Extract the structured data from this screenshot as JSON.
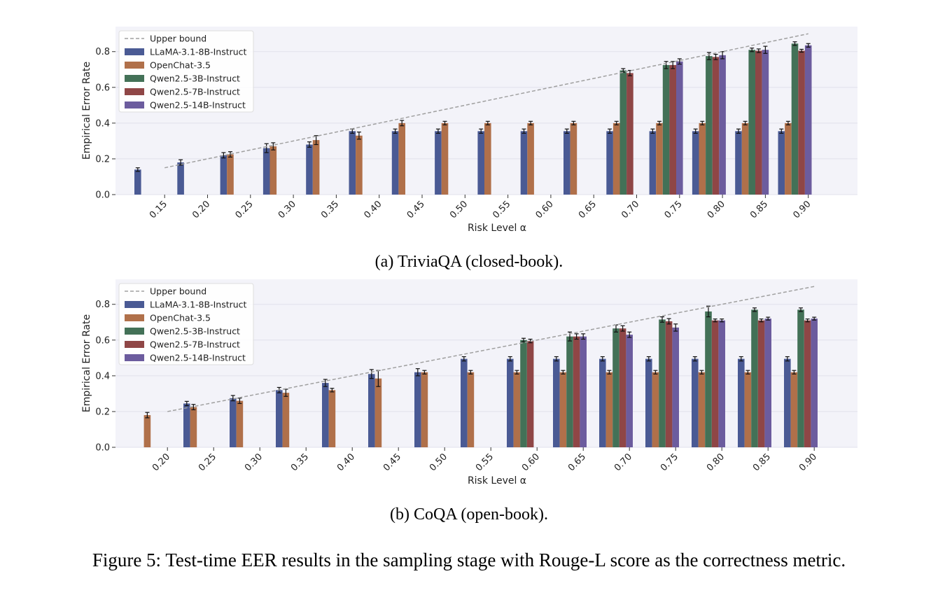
{
  "colors": {
    "LLaMA-3.1-8B-Instruct": "#4a5a94",
    "OpenChat-3.5": "#b0704a",
    "Qwen2.5-3B-Instruct": "#437157",
    "Qwen2.5-7B-Instruct": "#8f4646",
    "Qwen2.5-14B-Instruct": "#6c5c9e",
    "upper_bound": "#a0a0a0",
    "plot_bg": "#f3f3f9"
  },
  "figure_caption": "Figure 5: Test-time EER results in the sampling stage with Rouge-L score as the correctness metric.",
  "chart_data": [
    {
      "type": "bar",
      "caption": "(a) TriviaQA (closed-book).",
      "xlabel": "Risk Level α",
      "ylabel": "Empirical Error Rate",
      "ylim": [
        0,
        0.94
      ],
      "yticks": [
        "0.0",
        "0.2",
        "0.4",
        "0.6",
        "0.8"
      ],
      "categories": [
        "0.15",
        "0.20",
        "0.25",
        "0.30",
        "0.35",
        "0.40",
        "0.45",
        "0.50",
        "0.55",
        "0.60",
        "0.65",
        "0.70",
        "0.75",
        "0.80",
        "0.85",
        "0.90"
      ],
      "legend": [
        "Upper bound",
        "LLaMA-3.1-8B-Instruct",
        "OpenChat-3.5",
        "Qwen2.5-3B-Instruct",
        "Qwen2.5-7B-Instruct",
        "Qwen2.5-14B-Instruct"
      ],
      "legend_position": "top-left",
      "upper_bound": {
        "x": [
          0.15,
          0.9
        ],
        "y": [
          0.15,
          0.9
        ]
      },
      "series": [
        {
          "name": "LLaMA-3.1-8B-Instruct",
          "values": [
            0.14,
            0.18,
            0.22,
            0.26,
            0.28,
            0.355,
            0.355,
            0.355,
            0.355,
            0.355,
            0.355,
            0.355,
            0.355,
            0.355,
            0.355,
            0.355
          ],
          "errors": [
            0.01,
            0.015,
            0.015,
            0.025,
            0.015,
            0.012,
            0.012,
            0.012,
            0.012,
            0.012,
            0.012,
            0.012,
            0.012,
            0.012,
            0.012,
            0.012
          ]
        },
        {
          "name": "OpenChat-3.5",
          "values": [
            null,
            null,
            0.225,
            0.27,
            0.305,
            0.33,
            0.4,
            0.4,
            0.4,
            0.4,
            0.4,
            0.4,
            0.4,
            0.4,
            0.4,
            0.4
          ],
          "errors": [
            null,
            null,
            0.015,
            0.02,
            0.025,
            0.02,
            0.015,
            0.01,
            0.01,
            0.01,
            0.01,
            0.01,
            0.01,
            0.01,
            0.01,
            0.01
          ]
        },
        {
          "name": "Qwen2.5-3B-Instruct",
          "values": [
            null,
            null,
            null,
            null,
            null,
            null,
            null,
            null,
            null,
            null,
            null,
            0.695,
            0.725,
            0.775,
            0.81,
            0.845
          ],
          "errors": [
            null,
            null,
            null,
            null,
            null,
            null,
            null,
            null,
            null,
            null,
            null,
            0.01,
            0.02,
            0.02,
            0.01,
            0.01
          ]
        },
        {
          "name": "Qwen2.5-7B-Instruct",
          "values": [
            null,
            null,
            null,
            null,
            null,
            null,
            null,
            null,
            null,
            null,
            null,
            0.68,
            0.725,
            0.77,
            0.805,
            0.805
          ],
          "errors": [
            null,
            null,
            null,
            null,
            null,
            null,
            null,
            null,
            null,
            null,
            null,
            0.015,
            0.02,
            0.015,
            0.01,
            0.008
          ]
        },
        {
          "name": "Qwen2.5-14B-Instruct",
          "values": [
            null,
            null,
            null,
            null,
            null,
            null,
            null,
            null,
            null,
            null,
            null,
            null,
            0.745,
            0.78,
            0.81,
            0.835
          ],
          "errors": [
            null,
            null,
            null,
            null,
            null,
            null,
            null,
            null,
            null,
            null,
            null,
            null,
            0.015,
            0.02,
            0.02,
            0.01
          ]
        }
      ]
    },
    {
      "type": "bar",
      "caption": "(b) CoQA (open-book).",
      "xlabel": "Risk Level α",
      "ylabel": "Empirical Error Rate",
      "ylim": [
        0,
        0.94
      ],
      "yticks": [
        "0.0",
        "0.2",
        "0.4",
        "0.6",
        "0.8"
      ],
      "categories": [
        "0.20",
        "0.25",
        "0.30",
        "0.35",
        "0.40",
        "0.45",
        "0.50",
        "0.55",
        "0.60",
        "0.65",
        "0.70",
        "0.75",
        "0.80",
        "0.85",
        "0.90"
      ],
      "legend": [
        "Upper bound",
        "LLaMA-3.1-8B-Instruct",
        "OpenChat-3.5",
        "Qwen2.5-3B-Instruct",
        "Qwen2.5-7B-Instruct",
        "Qwen2.5-14B-Instruct"
      ],
      "legend_position": "top-left",
      "upper_bound": {
        "x": [
          0.2,
          0.9
        ],
        "y": [
          0.2,
          0.9
        ]
      },
      "series": [
        {
          "name": "LLaMA-3.1-8B-Instruct",
          "values": [
            null,
            0.245,
            0.275,
            0.32,
            0.36,
            0.41,
            0.42,
            0.495,
            0.495,
            0.495,
            0.495,
            0.495,
            0.495,
            0.495,
            0.495
          ],
          "errors": [
            null,
            0.012,
            0.015,
            0.015,
            0.02,
            0.025,
            0.02,
            0.012,
            0.012,
            0.012,
            0.012,
            0.012,
            0.012,
            0.012,
            0.012
          ]
        },
        {
          "name": "OpenChat-3.5",
          "values": [
            0.18,
            0.225,
            0.26,
            0.305,
            0.32,
            0.385,
            0.42,
            0.42,
            0.42,
            0.42,
            0.42,
            0.42,
            0.42,
            0.42,
            0.42
          ],
          "errors": [
            0.015,
            0.015,
            0.015,
            0.02,
            0.01,
            0.045,
            0.01,
            0.01,
            0.01,
            0.01,
            0.01,
            0.01,
            0.01,
            0.01,
            0.01
          ]
        },
        {
          "name": "Qwen2.5-3B-Instruct",
          "values": [
            null,
            null,
            null,
            null,
            null,
            null,
            null,
            null,
            0.6,
            0.62,
            0.665,
            0.715,
            0.76,
            0.77,
            0.77
          ],
          "errors": [
            null,
            null,
            null,
            null,
            null,
            null,
            null,
            null,
            0.01,
            0.025,
            0.02,
            0.015,
            0.03,
            0.01,
            0.01
          ]
        },
        {
          "name": "Qwen2.5-7B-Instruct",
          "values": [
            null,
            null,
            null,
            null,
            null,
            null,
            null,
            null,
            0.595,
            0.62,
            0.665,
            0.705,
            0.71,
            0.71,
            0.71
          ],
          "errors": [
            null,
            null,
            null,
            null,
            null,
            null,
            null,
            null,
            0.01,
            0.015,
            0.015,
            0.015,
            0.008,
            0.008,
            0.008
          ]
        },
        {
          "name": "Qwen2.5-14B-Instruct",
          "values": [
            null,
            null,
            null,
            null,
            null,
            null,
            null,
            null,
            null,
            0.62,
            0.63,
            0.67,
            0.71,
            0.72,
            0.72
          ],
          "errors": [
            null,
            null,
            null,
            null,
            null,
            null,
            null,
            null,
            null,
            0.015,
            0.015,
            0.02,
            0.008,
            0.008,
            0.008
          ]
        }
      ]
    }
  ]
}
